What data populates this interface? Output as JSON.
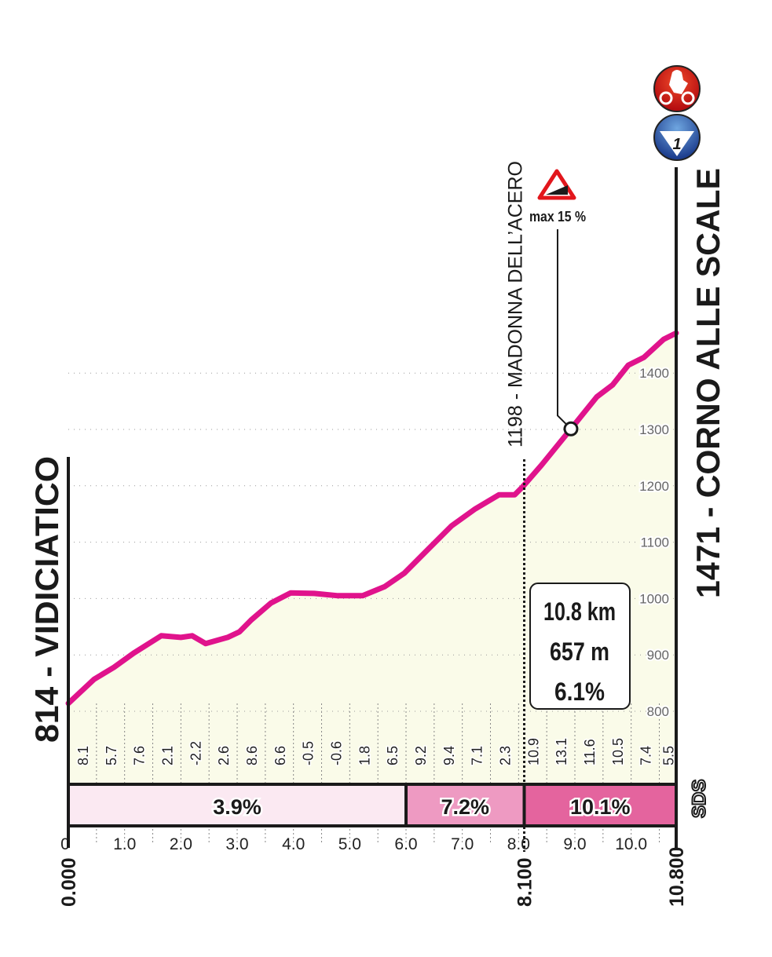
{
  "chart_data": {
    "type": "area",
    "title": "",
    "xlabel": "",
    "ylabel": "",
    "xlim": [
      0,
      10.8
    ],
    "ylim": [
      800,
      1471
    ],
    "grid": true,
    "x_tick_labels": [
      "0",
      "1.0",
      "2.0",
      "3.0",
      "4.0",
      "5.0",
      "6.0",
      "7.0",
      "8.0",
      "9.0",
      "10.0"
    ],
    "x_ticks": [
      0,
      1,
      2,
      3,
      4,
      5,
      6,
      7,
      8,
      9,
      10
    ],
    "y_ticks": [
      800,
      900,
      1000,
      1100,
      1200,
      1300,
      1400
    ],
    "y_tick_labels": [
      "800",
      "900",
      "1000",
      "1100",
      "1200",
      "1300",
      "1400"
    ],
    "profile": {
      "x": [
        0,
        0.46,
        0.81,
        1.16,
        1.65,
        2.0,
        2.2,
        2.44,
        2.83,
        3.04,
        3.25,
        3.6,
        3.95,
        4.37,
        4.79,
        5.23,
        5.62,
        5.97,
        6.39,
        6.81,
        7.23,
        7.65,
        7.93,
        8.07,
        8.41,
        8.93,
        9.39,
        9.67,
        9.95,
        10.23,
        10.58,
        10.8
      ],
      "y": [
        814,
        857,
        878,
        903,
        934,
        931,
        934,
        920,
        931,
        941,
        962,
        992,
        1010,
        1009,
        1005,
        1005,
        1021,
        1045,
        1087,
        1129,
        1159,
        1184,
        1184,
        1198,
        1237,
        1301,
        1358,
        1379,
        1414,
        1428,
        1460,
        1471
      ]
    },
    "half_km_gradients": [
      "8.1",
      "5.7",
      "7.6",
      "2.1",
      "-2.2",
      "2.6",
      "8.6",
      "6.6",
      "-0.5",
      "-0.6",
      "1.8",
      "6.5",
      "9.2",
      "9.4",
      "7.1",
      "2.3",
      "10.9",
      "13.1",
      "11.6",
      "10.5",
      "7.4",
      "5.5"
    ],
    "gradient_sections": [
      {
        "from": 0,
        "to": 6.0,
        "label": "3.9%",
        "color": "#fbe9f2"
      },
      {
        "from": 6.0,
        "to": 8.1,
        "label": "7.2%",
        "color": "#ee9ac2"
      },
      {
        "from": 8.1,
        "to": 10.8,
        "label": "10.1%",
        "color": "#e4649e"
      }
    ],
    "distance_markers": [
      {
        "km": 0,
        "label": "0.000"
      },
      {
        "km": 8.1,
        "label": "8.100"
      },
      {
        "km": 10.8,
        "label": "10.800"
      }
    ],
    "start_label": "814 - VIDICIATICO",
    "finish_label": "1471 - CORNO ALLE SCALE",
    "waypoint": {
      "km": 8.1,
      "label": "1198 - MADONNA DELL’ACERO"
    },
    "max_gradient": {
      "km": 8.93,
      "elevation": 1301,
      "label": "max 15 %"
    },
    "summary_box": [
      "10.8 km",
      "657 m",
      "6.1%"
    ],
    "sds_label": "SDS",
    "line_color": "#e0138c",
    "fill_color": "#fafbe9",
    "finish_icons": [
      "mountain-finish-cyclist-icon",
      "category-1-climb-icon"
    ],
    "climb_category": "1"
  }
}
